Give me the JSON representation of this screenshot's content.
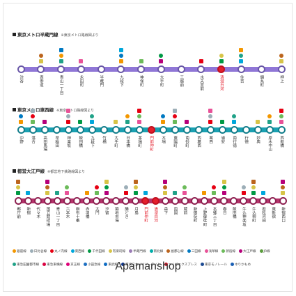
{
  "lines": [
    {
      "key": "hanzomon",
      "title": "東京メトロ半蔵門線",
      "source": "※東京メトロ路線図より",
      "color": "#8f76d6",
      "stroke": "#6a58a8",
      "stations": [
        "渋谷",
        "表参道",
        "青山一丁目",
        "永田町",
        "半蔵門",
        "九段下",
        "神保町",
        "大手町",
        "三越前",
        "水天宮前",
        "清澄白河",
        "住吉",
        "錦糸町",
        "押上"
      ],
      "current": [
        10
      ]
    },
    {
      "key": "tozai",
      "title": "東京メトロ東西線",
      "source": "※東京メトロ路線図より",
      "color": "#1aa1b2",
      "stroke": "#117d8b",
      "stations": [
        "中野",
        "落合",
        "高田馬場",
        "早稲田",
        "神楽坂",
        "飯田橋",
        "九段下",
        "竹橋",
        "大手町",
        "日本橋",
        "茅場町",
        "門前仲町",
        "木場",
        "東陽町",
        "南砂町",
        "西葛西",
        "葛西",
        "浦安",
        "南行徳",
        "行徳",
        "妙典",
        "原木中山",
        "西船橋"
      ],
      "current": [
        11
      ]
    },
    {
      "key": "oedo",
      "title": "都営大江戸線",
      "source": "※都営地下鉄路線図より",
      "color": "#b5336b",
      "stroke": "#8d2050",
      "stations": [
        "都庁前",
        "新宿",
        "代々木",
        "国立競技場",
        "青山一丁目",
        "六本木",
        "麻布十番",
        "赤羽橋",
        "大門",
        "汐留",
        "築地市場",
        "勝どき",
        "月島",
        "門前仲町",
        "清澄白河",
        "森下",
        "両国",
        "蔵前",
        "新御徒町",
        "上野御徒町",
        "本郷三丁目",
        "春日",
        "飯田橋",
        "牛込神楽坂",
        "牛込柳町",
        "若松河田",
        "東新宿",
        "新宿西口"
      ],
      "current": [
        13,
        14
      ]
    }
  ],
  "legend": [
    {
      "name": "銀座線",
      "color": "#f39700"
    },
    {
      "name": "日比谷線",
      "color": "#9caeb7"
    },
    {
      "name": "丸ノ内線",
      "color": "#e60012"
    },
    {
      "name": "東西線",
      "color": "#00a7db"
    },
    {
      "name": "千代田線",
      "color": "#009944"
    },
    {
      "name": "有楽町線",
      "color": "#d7c447"
    },
    {
      "name": "半蔵門線",
      "color": "#9b7cb6"
    },
    {
      "name": "南北線",
      "color": "#00ada9"
    },
    {
      "name": "副都心線",
      "color": "#bb641d"
    },
    {
      "name": "三田線",
      "color": "#0079c2"
    },
    {
      "name": "浅草線",
      "color": "#e85298"
    },
    {
      "name": "新宿線",
      "color": "#6cbb5a"
    },
    {
      "name": "大江戸線",
      "color": "#b6007a"
    },
    {
      "name": "JR線",
      "color": "#5a9b3c"
    },
    {
      "name": "東急田園都市線",
      "color": "#20a288"
    },
    {
      "name": "東急東横線",
      "color": "#da0442"
    },
    {
      "name": "京王線",
      "color": "#dd0077"
    },
    {
      "name": "小田急線",
      "color": "#1e6fc1"
    },
    {
      "name": "東武線",
      "color": "#0f6cc3"
    },
    {
      "name": "東武スカイツリーライン",
      "color": "#0f378e"
    },
    {
      "name": "つくばエクスプレス",
      "color": "#db1a2b"
    },
    {
      "name": "東京モノレール",
      "color": "#1c4a92"
    },
    {
      "name": "ゆりかもめ",
      "color": "#1a5fb4"
    }
  ],
  "brand": "Apamanshop"
}
